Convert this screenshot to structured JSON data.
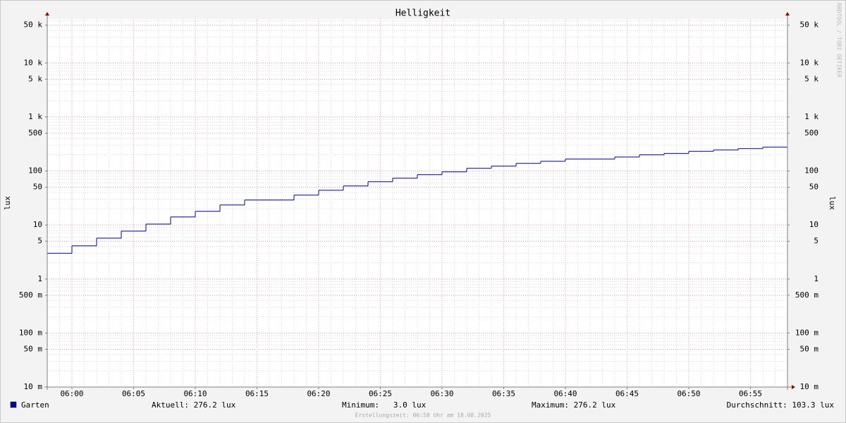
{
  "chart_data": {
    "type": "step",
    "title": "Helligkeit",
    "y_label": "lux",
    "x": [
      "05:58",
      "06:00",
      "06:02",
      "06:04",
      "06:06",
      "06:08",
      "06:10",
      "06:12",
      "06:14",
      "06:18",
      "06:20",
      "06:22",
      "06:24",
      "06:26",
      "06:28",
      "06:30",
      "06:32",
      "06:34",
      "06:36",
      "06:38",
      "06:40",
      "06:44",
      "06:46",
      "06:48",
      "06:50",
      "06:52",
      "06:54",
      "06:56"
    ],
    "series": [
      {
        "name": "Garten",
        "color": "#00008b",
        "values": [
          3.0,
          4.1,
          5.7,
          7.7,
          10.4,
          14.1,
          17.9,
          23.5,
          29,
          35.7,
          44,
          52.8,
          63.3,
          73.6,
          85.5,
          96.4,
          112,
          123,
          138,
          151,
          166,
          181,
          199,
          211,
          231,
          245,
          260,
          276.2
        ]
      }
    ],
    "xlim": [
      "05:58",
      "06:58"
    ],
    "xticks": [
      "06:00",
      "06:05",
      "06:10",
      "06:15",
      "06:20",
      "06:25",
      "06:30",
      "06:35",
      "06:40",
      "06:45",
      "06:50",
      "06:55"
    ],
    "ylim": [
      0.01,
      65000
    ],
    "log_y": true,
    "yticks": [
      {
        "value": 0.01,
        "label": "10 m"
      },
      {
        "value": 0.05,
        "label": "50 m"
      },
      {
        "value": 0.1,
        "label": "100 m"
      },
      {
        "value": 0.5,
        "label": "500 m"
      },
      1,
      5,
      10,
      50,
      100,
      500,
      {
        "value": 1000,
        "label": "1 k"
      },
      {
        "value": 5000,
        "label": "5 k"
      },
      {
        "value": 10000,
        "label": "10 k"
      },
      {
        "value": 50000,
        "label": "50 k"
      }
    ],
    "grid": true,
    "stats": [
      "Aktuell: 276.2 lux",
      "Minimum:   3.0 lux",
      "Maximum: 276.2 lux",
      "Durchschnitt: 103.3 lux"
    ],
    "footer": "Erstellungszeit: 06:58 Uhr am 18.08.2025",
    "watermark": "RRDTOOL / TOBI OETIKER"
  }
}
